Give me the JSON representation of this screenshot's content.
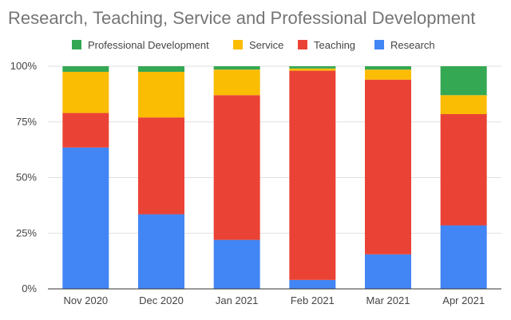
{
  "chart_data": {
    "type": "bar",
    "stacked": "percent",
    "title": "Research, Teaching, Service and Professional Development",
    "categories": [
      "Nov 2020",
      "Dec 2020",
      "Jan 2021",
      "Feb 2021",
      "Mar 2021",
      "Apr 2021"
    ],
    "series": [
      {
        "name": "Research",
        "color": "#4285f4",
        "values": [
          63.5,
          33.5,
          22,
          4,
          15.5,
          28.5
        ]
      },
      {
        "name": "Teaching",
        "color": "#ea4335",
        "values": [
          15.5,
          43.5,
          65,
          94,
          78.5,
          50
        ]
      },
      {
        "name": "Service",
        "color": "#fbbc04",
        "values": [
          18.5,
          20.5,
          11.5,
          1,
          4.5,
          8.5
        ]
      },
      {
        "name": "Professional Development",
        "color": "#34a853",
        "values": [
          2.5,
          2.5,
          1.5,
          1,
          1.5,
          13
        ]
      }
    ],
    "legend_order": [
      "Professional Development",
      "Service",
      "Teaching",
      "Research"
    ],
    "y_ticks": [
      "0%",
      "25%",
      "50%",
      "75%",
      "100%"
    ],
    "ylim": [
      0,
      100
    ],
    "grid": true,
    "legend_position": "top"
  }
}
